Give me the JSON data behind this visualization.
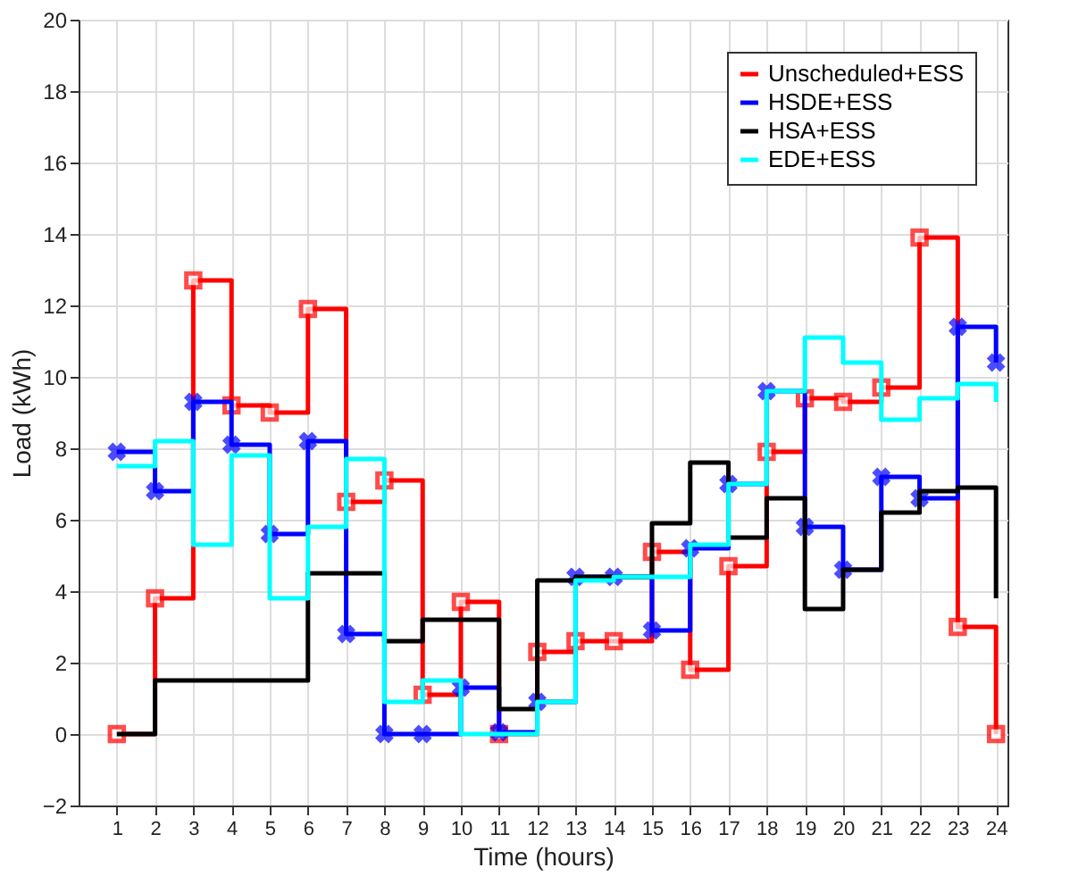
{
  "chart_data": {
    "type": "step",
    "xlabel": "Time (hours)",
    "ylabel": "Load (kWh)",
    "x": [
      1,
      2,
      3,
      4,
      5,
      6,
      7,
      8,
      9,
      10,
      11,
      12,
      13,
      14,
      15,
      16,
      17,
      18,
      19,
      20,
      21,
      22,
      23,
      24
    ],
    "series": [
      {
        "name": "Unscheduled+ESS",
        "color": "#ff0000",
        "marker": "square",
        "values": [
          0,
          3.8,
          12.7,
          9.2,
          9.0,
          11.9,
          6.5,
          7.1,
          1.1,
          3.7,
          0,
          2.3,
          2.6,
          2.6,
          5.1,
          1.8,
          4.7,
          7.9,
          9.4,
          9.3,
          9.7,
          13.9,
          3.0,
          0
        ]
      },
      {
        "name": "HSDE+ESS",
        "color": "#0000ff",
        "marker": "cross",
        "values": [
          7.9,
          6.8,
          9.3,
          8.1,
          5.6,
          8.2,
          2.8,
          0,
          0,
          1.3,
          0.05,
          0.9,
          4.4,
          4.4,
          2.9,
          5.2,
          7.0,
          9.6,
          5.8,
          4.6,
          7.2,
          6.6,
          11.4,
          10.4
        ]
      },
      {
        "name": "HSA+ESS",
        "color": "#000000",
        "marker": "none",
        "values": [
          0,
          1.5,
          1.5,
          1.5,
          1.5,
          4.5,
          4.5,
          2.6,
          3.2,
          3.2,
          0.7,
          4.3,
          4.4,
          4.4,
          5.9,
          7.6,
          5.5,
          6.6,
          3.5,
          4.6,
          6.2,
          6.8,
          6.9,
          3.8
        ]
      },
      {
        "name": "EDE+ESS",
        "color": "#00ffff",
        "marker": "none",
        "values": [
          7.5,
          8.2,
          5.3,
          7.8,
          3.8,
          5.8,
          7.7,
          0.9,
          1.5,
          0,
          0,
          0.9,
          4.3,
          4.4,
          4.4,
          5.3,
          7.0,
          9.6,
          11.1,
          10.4,
          8.8,
          9.4,
          9.8,
          9.3
        ]
      }
    ],
    "xlim": [
      0,
      24.3
    ],
    "xticks": [
      1,
      2,
      3,
      4,
      5,
      6,
      7,
      8,
      9,
      10,
      11,
      12,
      13,
      14,
      15,
      16,
      17,
      18,
      19,
      20,
      21,
      22,
      23,
      24
    ],
    "ylim": [
      -2,
      20
    ],
    "yticks": [
      -2,
      0,
      2,
      4,
      6,
      8,
      10,
      12,
      14,
      16,
      18,
      20
    ],
    "grid": true,
    "legend": "top right",
    "line_style": "solid"
  }
}
